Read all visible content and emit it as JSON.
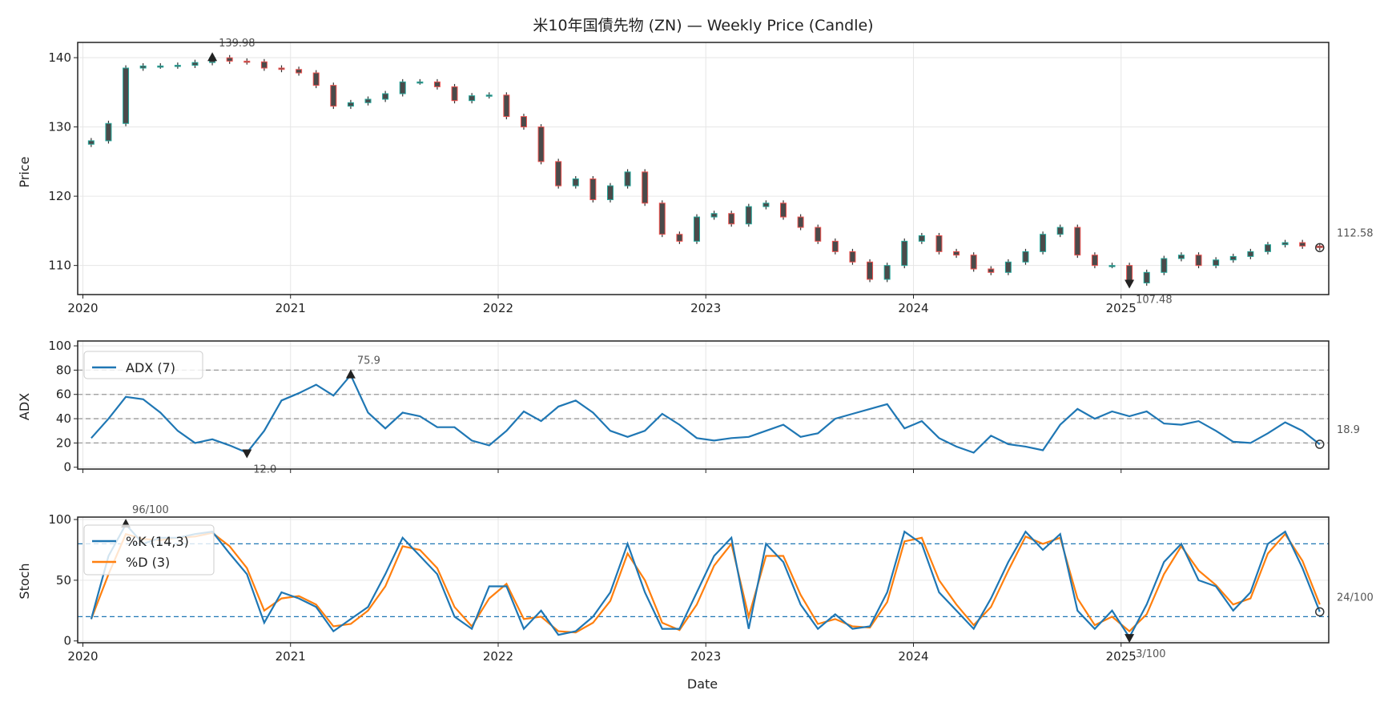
{
  "chart_data": [
    {
      "type": "candlestick",
      "title": "米10年国債先物 (ZN) — Weekly Price (Candle)",
      "ylabel": "Price",
      "ylim": [
        105.8,
        142.2
      ],
      "yticks": [
        "110",
        "120",
        "130",
        "140"
      ],
      "xticks": [
        "2020",
        "2021",
        "2022",
        "2023",
        "2024",
        "2025"
      ],
      "grid": true,
      "colors": {
        "up": "#26a69a",
        "down": "#ef5350",
        "body": "#4a4a4a"
      },
      "dates": [
        "2020-01",
        "2020-02",
        "2020-03",
        "2020-04",
        "2020-05",
        "2020-06",
        "2020-07",
        "2020-08",
        "2020-09",
        "2020-10",
        "2020-11",
        "2020-12",
        "2021-01",
        "2021-02",
        "2021-03",
        "2021-04",
        "2021-05",
        "2021-06",
        "2021-07",
        "2021-08",
        "2021-09",
        "2021-10",
        "2021-11",
        "2021-12",
        "2022-01",
        "2022-02",
        "2022-03",
        "2022-04",
        "2022-05",
        "2022-06",
        "2022-07",
        "2022-08",
        "2022-09",
        "2022-10",
        "2022-11",
        "2022-12",
        "2023-01",
        "2023-02",
        "2023-03",
        "2023-04",
        "2023-05",
        "2023-06",
        "2023-07",
        "2023-08",
        "2023-09",
        "2023-10",
        "2023-11",
        "2023-12",
        "2024-01",
        "2024-02",
        "2024-03",
        "2024-04",
        "2024-05",
        "2024-06",
        "2024-07",
        "2024-08",
        "2024-09",
        "2024-10",
        "2024-11",
        "2024-12",
        "2025-01",
        "2025-02",
        "2025-03",
        "2025-04",
        "2025-05",
        "2025-06",
        "2025-07",
        "2025-08",
        "2025-09",
        "2025-10",
        "2025-11",
        "2025-12"
      ],
      "close": [
        128,
        130.5,
        138.5,
        138.8,
        138.8,
        138.9,
        139.3,
        139.98,
        139.5,
        139.4,
        138.5,
        138.3,
        137.8,
        136,
        133,
        133.5,
        134,
        134.8,
        136.5,
        136.5,
        135.8,
        133.8,
        134.5,
        134.6,
        131.5,
        130,
        125,
        121.5,
        122.5,
        119.5,
        121.5,
        123.5,
        119,
        114.5,
        113.5,
        117,
        117.5,
        116,
        118.5,
        119,
        117,
        115.5,
        113.5,
        112,
        110.5,
        108,
        110,
        113.5,
        114.3,
        112,
        111.5,
        109.5,
        109,
        110.5,
        112,
        114.5,
        115.5,
        111.5,
        110,
        110,
        107.48,
        109,
        111,
        111.5,
        110,
        110.8,
        111.3,
        112,
        113,
        113.3,
        112.8,
        112.58
      ],
      "annotations": {
        "max_label": "139.98",
        "min_label": "107.48",
        "last_label": "112.58"
      }
    },
    {
      "type": "line",
      "ylabel": "ADX",
      "ylim": [
        -1.5,
        104
      ],
      "yticks": [
        "0",
        "20",
        "40",
        "60",
        "80",
        "100"
      ],
      "reference_lines": [
        20,
        40,
        60,
        80
      ],
      "legend": "top-left",
      "series": [
        {
          "name": "ADX (7)",
          "color": "#1f77b4",
          "values": [
            24,
            40,
            58,
            56,
            45,
            30,
            20,
            23,
            18,
            12,
            30,
            55,
            61,
            68,
            59,
            75.9,
            45,
            32,
            45,
            42,
            33,
            33,
            22,
            18,
            30,
            46,
            38,
            50,
            55,
            45,
            30,
            25,
            30,
            44,
            35,
            24,
            22,
            24,
            25,
            30,
            35,
            25,
            28,
            40,
            44,
            48,
            52,
            32,
            38,
            24,
            17,
            12,
            26,
            19,
            17,
            14,
            35,
            48,
            40,
            46,
            42,
            46,
            36,
            35,
            38,
            30,
            21,
            20,
            28,
            37,
            30,
            18.9
          ]
        }
      ],
      "annotations": {
        "max_label": "75.9",
        "min_label": "12.0",
        "last_label": "18.9"
      }
    },
    {
      "type": "line",
      "xlabel": "Date",
      "ylabel": "Stoch",
      "ylim": [
        -1.5,
        102
      ],
      "yticks": [
        "0",
        "50",
        "100"
      ],
      "xticks": [
        "2020",
        "2021",
        "2022",
        "2023",
        "2024",
        "2025"
      ],
      "reference_lines": [
        20,
        80
      ],
      "legend": "top-left",
      "series": [
        {
          "name": "%K (14,3)",
          "color": "#1f77b4",
          "values": [
            18,
            70,
            96,
            80,
            85,
            85,
            88,
            90,
            72,
            55,
            15,
            40,
            35,
            28,
            8,
            18,
            28,
            55,
            85,
            70,
            55,
            20,
            10,
            45,
            45,
            10,
            25,
            5,
            8,
            20,
            40,
            80,
            40,
            10,
            10,
            40,
            70,
            85,
            10,
            80,
            65,
            30,
            10,
            22,
            10,
            12,
            40,
            90,
            80,
            40,
            25,
            10,
            35,
            65,
            90,
            75,
            88,
            25,
            10,
            25,
            3,
            30,
            65,
            80,
            50,
            45,
            25,
            40,
            80,
            90,
            60,
            24
          ]
        },
        {
          "name": "%D (3)",
          "color": "#ff7f0e",
          "values": [
            18,
            55,
            88,
            84,
            83,
            85,
            86,
            89,
            78,
            60,
            25,
            35,
            37,
            30,
            12,
            14,
            25,
            45,
            78,
            75,
            60,
            28,
            12,
            35,
            47,
            18,
            20,
            8,
            7,
            15,
            33,
            72,
            50,
            15,
            9,
            30,
            62,
            80,
            20,
            70,
            70,
            38,
            14,
            18,
            12,
            11,
            32,
            82,
            85,
            50,
            30,
            13,
            28,
            58,
            86,
            80,
            85,
            35,
            13,
            20,
            8,
            22,
            55,
            78,
            58,
            46,
            30,
            35,
            72,
            88,
            66,
            30
          ]
        }
      ],
      "annotations": {
        "max_label": "96/100",
        "min_label": "3/100",
        "last_label": "24/100"
      }
    }
  ]
}
